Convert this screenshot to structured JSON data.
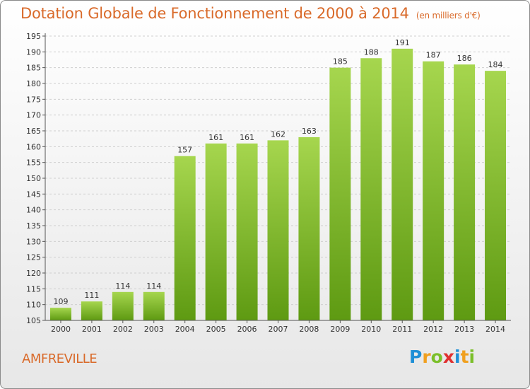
{
  "header": {
    "title": "Dotation Globale de Fonctionnement de 2000 à 2014",
    "subtitle": "(en milliers d'€)"
  },
  "footer": {
    "commune": "AMFREVILLE",
    "logo_letters": [
      {
        "ch": "P",
        "color": "#1e8fd6"
      },
      {
        "ch": "r",
        "color": "#f0a020"
      },
      {
        "ch": "o",
        "color": "#7bbf2a"
      },
      {
        "ch": "x",
        "color": "#e03030"
      },
      {
        "ch": "i",
        "color": "#1e8fd6"
      },
      {
        "ch": "t",
        "color": "#f0a020"
      },
      {
        "ch": "i",
        "color": "#7bbf2a"
      }
    ]
  },
  "colors": {
    "bar_top": "#a6d64e",
    "bar_bottom": "#5e9a12",
    "grid": "#cfcfcf",
    "axis": "#555555",
    "title": "#d96a2a"
  },
  "chart_data": {
    "type": "bar",
    "title": "Dotation Globale de Fonctionnement de 2000 à 2014",
    "subtitle": "(en milliers d'€)",
    "categories": [
      "2000",
      "2001",
      "2002",
      "2003",
      "2004",
      "2005",
      "2006",
      "2007",
      "2008",
      "2009",
      "2010",
      "2011",
      "2012",
      "2013",
      "2014"
    ],
    "values": [
      109,
      111,
      114,
      114,
      157,
      161,
      161,
      162,
      163,
      185,
      188,
      191,
      187,
      186,
      184
    ],
    "ylim": [
      105,
      195
    ],
    "yticks": [
      105,
      110,
      115,
      120,
      125,
      130,
      135,
      140,
      145,
      150,
      155,
      160,
      165,
      170,
      175,
      180,
      185,
      190,
      195
    ],
    "grid": true,
    "legend": "none"
  }
}
